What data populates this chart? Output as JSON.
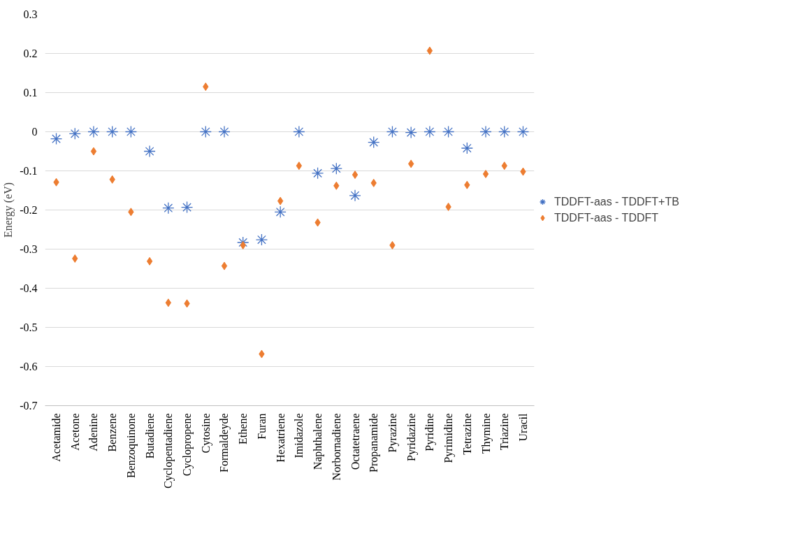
{
  "chart_data": {
    "type": "scatter",
    "ylabel": "Energy (eV)",
    "categories": [
      "Acetamide",
      "Acetone",
      "Adenine",
      "Benzene",
      "Benzoquinone",
      "Butadiene",
      "Cyclopentadiene",
      "Cyclopropene",
      "Cytosine",
      "Formaldeyde",
      "Ethene",
      "Furan",
      "Hexatriene",
      "Imidazole",
      "Naphthalene",
      "Norbornadiene",
      "Octatetraene",
      "Propanamide",
      "Pyrazine",
      "Pyridazine",
      "Pyridine",
      "Pyrimidine",
      "Tetrazine",
      "Thymine",
      "Triazine",
      "Uracil"
    ],
    "series": [
      {
        "name": "TDDFT-aas - TDDFT+TB",
        "color": "#4472c4",
        "marker": "cross",
        "values": [
          -0.018,
          -0.005,
          0,
          0,
          0,
          -0.05,
          -0.195,
          -0.193,
          0,
          0,
          -0.283,
          -0.276,
          -0.205,
          0,
          -0.106,
          -0.094,
          -0.163,
          -0.027,
          0,
          -0.002,
          0,
          0,
          -0.042,
          0,
          0,
          0
        ]
      },
      {
        "name": "TDDFT-aas - TDDFT",
        "color": "#ed7d31",
        "marker": "diamond",
        "values": [
          -0.129,
          -0.324,
          -0.05,
          -0.122,
          -0.205,
          -0.331,
          -0.437,
          -0.439,
          0.115,
          -0.343,
          -0.29,
          -0.568,
          -0.177,
          -0.087,
          -0.232,
          -0.138,
          -0.11,
          -0.131,
          -0.29,
          -0.082,
          0.207,
          -0.192,
          -0.136,
          -0.108,
          -0.087,
          -0.102
        ]
      }
    ],
    "ylim": [
      -0.7,
      0.3
    ],
    "yticks": [
      -0.7,
      -0.6,
      -0.5,
      -0.4,
      -0.3,
      -0.2,
      -0.1,
      0,
      0.1,
      0.2,
      0.3
    ],
    "grid": "y",
    "legend": "right"
  }
}
